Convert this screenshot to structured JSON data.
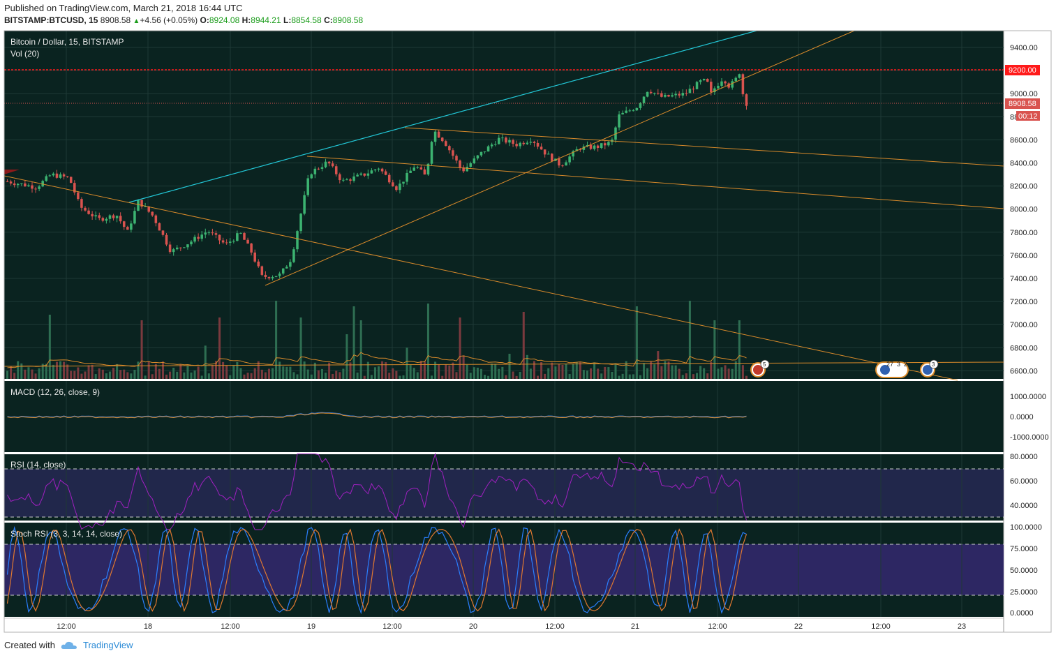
{
  "header": {
    "published": "Published on TradingView.com, March 21, 2018 16:44 UTC",
    "symbol": "BITSTAMP:BTCUSD, 15",
    "last": "8908.58",
    "change": "+4.56 (+0.05%)",
    "o_label": "O:",
    "o": "8924.08",
    "h_label": "H:",
    "h": "8944.21",
    "l_label": "L:",
    "l": "8854.58",
    "c_label": "C:",
    "c": "8908.58"
  },
  "footer": {
    "created_with": "Created with",
    "brand": "TradingView"
  },
  "colors": {
    "background": "#0a2320",
    "grid": "#1e3a36",
    "up": "#3cb371",
    "down": "#d9534f",
    "resistance": "#ff1a1a",
    "channel_top": "#22c7d6",
    "trend": "#d98a2a",
    "macd": "#3a7bd5",
    "signal": "#d98a2a",
    "rsi": "#a020c0",
    "stoch_k": "#2a7fff",
    "stoch_d": "#e07830"
  },
  "main_pane": {
    "title": "Bitcoin / Dollar, 15, BITSTAMP",
    "vol_label": "Vol (20)",
    "y_ticks": [
      "9400.00",
      "9200.00",
      "9000.00",
      "8800.00",
      "8600.00",
      "8400.00",
      "8200.00",
      "8000.00",
      "7800.00",
      "7600.00",
      "7400.00",
      "7200.00",
      "7000.00",
      "6800.00",
      "6600.00"
    ],
    "resistance_label": "9200.00",
    "price_label": "8908.58",
    "countdown": "00:12",
    "event_badges": [
      "5",
      "27",
      "3",
      "2",
      "3"
    ]
  },
  "macd_pane": {
    "title": "MACD (12, 26, close, 9)",
    "y_ticks": [
      "1000.0000",
      "0.0000",
      "-1000.0000"
    ]
  },
  "rsi_pane": {
    "title": "RSI (14, close)",
    "y_ticks": [
      "80.0000",
      "60.0000",
      "40.0000"
    ]
  },
  "stoch_pane": {
    "title": "Stoch RSI (3, 3, 14, 14, close)",
    "y_ticks": [
      "100.0000",
      "75.0000",
      "50.0000",
      "25.0000",
      "0.0000"
    ]
  },
  "x_axis": {
    "labels": [
      "12:00",
      "18",
      "12:00",
      "19",
      "12:00",
      "20",
      "12:00",
      "21",
      "12:00",
      "22",
      "12:00",
      "23"
    ]
  },
  "chart_data": {
    "type": "candlestick",
    "title": "Bitcoin / Dollar, 15, BITSTAMP",
    "interval": "15",
    "resistance": 9200,
    "last_price": 8908.58,
    "ylim": [
      6500,
      9450
    ],
    "price_path": [
      [
        0,
        8230
      ],
      [
        0.04,
        8180
      ],
      [
        0.06,
        8290
      ],
      [
        0.085,
        8260
      ],
      [
        0.1,
        8010
      ],
      [
        0.125,
        7900
      ],
      [
        0.15,
        7940
      ],
      [
        0.165,
        7790
      ],
      [
        0.18,
        8060
      ],
      [
        0.2,
        7930
      ],
      [
        0.225,
        7620
      ],
      [
        0.25,
        7700
      ],
      [
        0.275,
        7800
      ],
      [
        0.3,
        7680
      ],
      [
        0.32,
        7780
      ],
      [
        0.335,
        7620
      ],
      [
        0.35,
        7400
      ],
      [
        0.375,
        7420
      ],
      [
        0.39,
        7560
      ],
      [
        0.415,
        8300
      ],
      [
        0.44,
        8400
      ],
      [
        0.46,
        8230
      ],
      [
        0.49,
        8290
      ],
      [
        0.51,
        8350
      ],
      [
        0.535,
        8170
      ],
      [
        0.56,
        8370
      ],
      [
        0.575,
        8270
      ],
      [
        0.585,
        8680
      ],
      [
        0.6,
        8580
      ],
      [
        0.625,
        8320
      ],
      [
        0.65,
        8470
      ],
      [
        0.675,
        8600
      ],
      [
        0.7,
        8550
      ],
      [
        0.72,
        8600
      ],
      [
        0.74,
        8470
      ],
      [
        0.76,
        8370
      ],
      [
        0.785,
        8520
      ],
      [
        0.81,
        8530
      ],
      [
        0.83,
        8570
      ],
      [
        0.84,
        8800
      ],
      [
        0.865,
        8880
      ],
      [
        0.88,
        9030
      ],
      [
        0.9,
        8960
      ],
      [
        0.93,
        8990
      ],
      [
        0.955,
        9110
      ],
      [
        0.975,
        9030
      ],
      [
        1.0,
        8940
      ]
    ],
    "tail_path": [
      [
        0,
        8940
      ],
      [
        0.2,
        9050
      ],
      [
        0.4,
        9130
      ],
      [
        0.55,
        9060
      ],
      [
        0.7,
        9100
      ],
      [
        0.82,
        9180
      ],
      [
        0.9,
        9000
      ],
      [
        1.0,
        8909
      ]
    ]
  }
}
